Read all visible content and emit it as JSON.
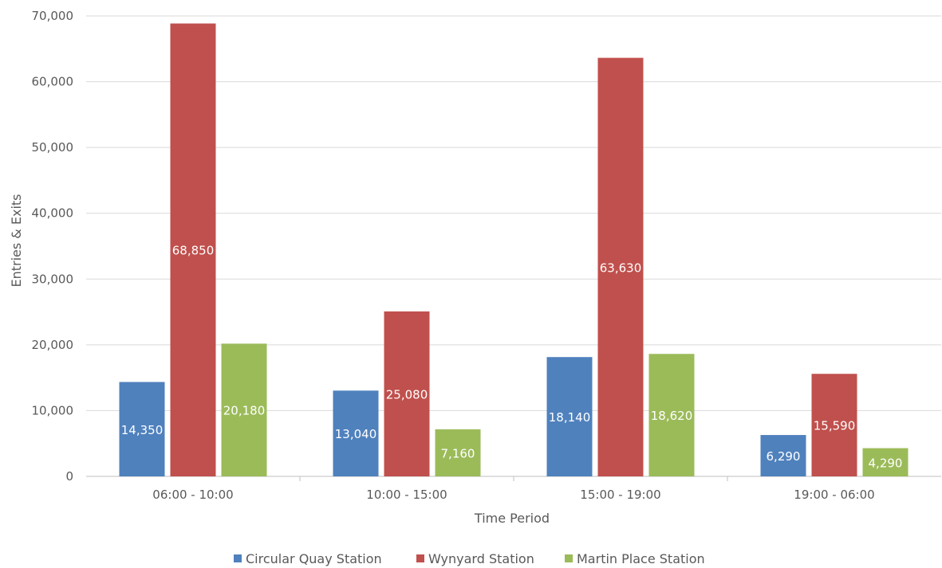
{
  "chart_data": {
    "type": "bar",
    "title": "",
    "xlabel": "Time Period",
    "ylabel": "Entries & Exits",
    "ylim": [
      0,
      70000
    ],
    "yticks": [
      0,
      10000,
      20000,
      30000,
      40000,
      50000,
      60000,
      70000
    ],
    "ytick_labels": [
      "0",
      "10,000",
      "20,000",
      "30,000",
      "40,000",
      "50,000",
      "60,000",
      "70,000"
    ],
    "grid": true,
    "legend_position": "bottom",
    "categories": [
      "06:00 - 10:00",
      "10:00 - 15:00",
      "15:00 - 19:00",
      "19:00 - 06:00"
    ],
    "series": [
      {
        "name": "Circular Quay Station",
        "color": "#4F81BD",
        "values": [
          14350,
          13040,
          18140,
          6290
        ],
        "labels": [
          "14,350",
          "13,040",
          "18,140",
          "6,290"
        ]
      },
      {
        "name": "Wynyard Station",
        "color": "#C0504D",
        "values": [
          68850,
          25080,
          63630,
          15590
        ],
        "labels": [
          "68,850",
          "25,080",
          "63,630",
          "15,590"
        ]
      },
      {
        "name": "Martin Place Station",
        "color": "#9BBB59",
        "values": [
          20180,
          7160,
          18620,
          4290
        ],
        "labels": [
          "20,180",
          "7,160",
          "18,620",
          "4,290"
        ]
      }
    ]
  }
}
